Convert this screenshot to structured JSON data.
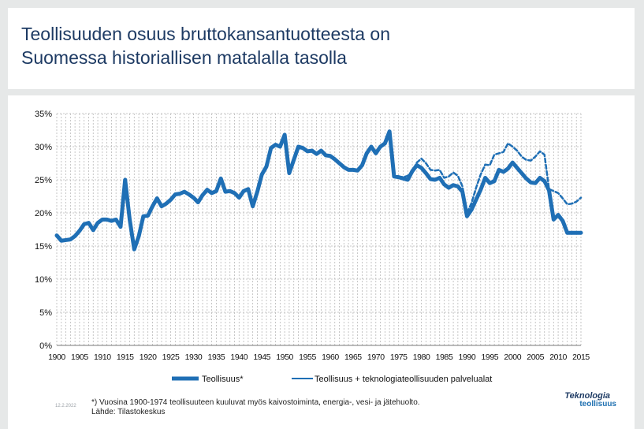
{
  "title_line1": "Teollisuuden osuus bruttokansantuotteesta on",
  "title_line2": "Suomessa historiallisen matalalla tasolla",
  "footnote_line1": "*) Vuosina 1900-1974 teollisuuteen kuuluvat myös kaivostoiminta, energia-, vesi- ja jätehuolto.",
  "footnote_line2": "Lähde: Tilastokeskus",
  "date_label": "12.2.2022",
  "logo_line1": "Teknologia",
  "logo_line2": "teollisuus",
  "chart_data": {
    "type": "line",
    "title": "",
    "xlabel": "",
    "ylabel": "",
    "ylim": [
      0,
      35
    ],
    "xlim": [
      1900,
      2015
    ],
    "grid": true,
    "legend": "bottom",
    "y_ticks": [
      "0%",
      "5%",
      "10%",
      "15%",
      "20%",
      "25%",
      "30%",
      "35%"
    ],
    "x_ticks": [
      "1900",
      "1905",
      "1910",
      "1915",
      "1920",
      "1925",
      "1930",
      "1935",
      "1940",
      "1945",
      "1950",
      "1955",
      "1960",
      "1965",
      "1970",
      "1975",
      "1980",
      "1985",
      "1990",
      "1995",
      "2000",
      "2005",
      "2010",
      "2015"
    ],
    "series": [
      {
        "name": "Teollisuus*",
        "color": "#1f6fb5",
        "style": "solid-thick",
        "x": [
          1900,
          1901,
          1902,
          1903,
          1904,
          1905,
          1906,
          1907,
          1908,
          1909,
          1910,
          1911,
          1912,
          1913,
          1914,
          1915,
          1916,
          1917,
          1918,
          1919,
          1920,
          1921,
          1922,
          1923,
          1924,
          1925,
          1926,
          1927,
          1928,
          1929,
          1930,
          1931,
          1932,
          1933,
          1934,
          1935,
          1936,
          1937,
          1938,
          1939,
          1940,
          1941,
          1942,
          1943,
          1944,
          1945,
          1946,
          1947,
          1948,
          1949,
          1950,
          1951,
          1952,
          1953,
          1954,
          1955,
          1956,
          1957,
          1958,
          1959,
          1960,
          1961,
          1962,
          1963,
          1964,
          1965,
          1966,
          1967,
          1968,
          1969,
          1970,
          1971,
          1972,
          1973,
          1974,
          1975,
          1976,
          1977,
          1978,
          1979,
          1980,
          1981,
          1982,
          1983,
          1984,
          1985,
          1986,
          1987,
          1988,
          1989,
          1990,
          1991,
          1992,
          1993,
          1994,
          1995,
          1996,
          1997,
          1998,
          1999,
          2000,
          2001,
          2002,
          2003,
          2004,
          2005,
          2006,
          2007,
          2008,
          2009,
          2010,
          2011,
          2012,
          2013,
          2014,
          2015
        ],
        "values": [
          16.6,
          15.8,
          15.9,
          16.0,
          16.5,
          17.3,
          18.3,
          18.5,
          17.4,
          18.5,
          19.0,
          19.0,
          18.8,
          19.0,
          17.9,
          25.0,
          19.0,
          14.5,
          16.5,
          19.5,
          19.6,
          21.0,
          22.2,
          21.0,
          21.4,
          22.0,
          22.8,
          22.9,
          23.2,
          22.8,
          22.3,
          21.6,
          22.7,
          23.5,
          23.0,
          23.3,
          25.2,
          23.2,
          23.3,
          23.0,
          22.3,
          23.3,
          23.6,
          21.0,
          23.2,
          25.8,
          27.0,
          29.8,
          30.3,
          30.0,
          31.8,
          26.0,
          28.0,
          30.0,
          29.8,
          29.3,
          29.4,
          28.9,
          29.4,
          28.7,
          28.6,
          28.1,
          27.5,
          26.9,
          26.5,
          26.5,
          26.4,
          27.2,
          29.0,
          30.0,
          29.0,
          30.0,
          30.5,
          32.3,
          25.5,
          25.4,
          25.2,
          25.0,
          26.3,
          27.2,
          26.8,
          26.0,
          25.1,
          25.0,
          25.3,
          24.3,
          23.8,
          24.2,
          24.0,
          23.2,
          19.5,
          20.5,
          22.0,
          23.5,
          25.3,
          24.5,
          24.8,
          26.5,
          26.2,
          26.7,
          27.6,
          26.8,
          26.0,
          25.2,
          24.6,
          24.5,
          25.3,
          24.8,
          23.4,
          19.0,
          19.7,
          18.8,
          17.0,
          17.0,
          17.0,
          17.0
        ]
      },
      {
        "name": "Teollisuus + teknologiateollisuuden palvelualat",
        "color": "#1f6fb5",
        "style": "dashed",
        "x": [
          1975,
          1976,
          1977,
          1978,
          1979,
          1980,
          1981,
          1982,
          1983,
          1984,
          1985,
          1986,
          1987,
          1988,
          1989,
          1990,
          1991,
          1992,
          1993,
          1994,
          1995,
          1996,
          1997,
          1998,
          1999,
          2000,
          2001,
          2002,
          2003,
          2004,
          2005,
          2006,
          2007,
          2008,
          2009,
          2010,
          2011,
          2012,
          2013,
          2014,
          2015
        ],
        "values": [
          25.5,
          25.4,
          25.6,
          26.3,
          27.6,
          28.2,
          27.5,
          26.5,
          26.4,
          26.5,
          25.3,
          25.5,
          26.1,
          25.6,
          24.0,
          20.0,
          21.5,
          23.8,
          25.8,
          27.3,
          27.2,
          28.8,
          29.0,
          29.2,
          30.5,
          30.0,
          29.4,
          28.5,
          28.0,
          27.9,
          28.5,
          29.3,
          28.8,
          23.6,
          23.3,
          23.0,
          22.2,
          21.3,
          21.4,
          21.7,
          22.3
        ]
      }
    ]
  }
}
